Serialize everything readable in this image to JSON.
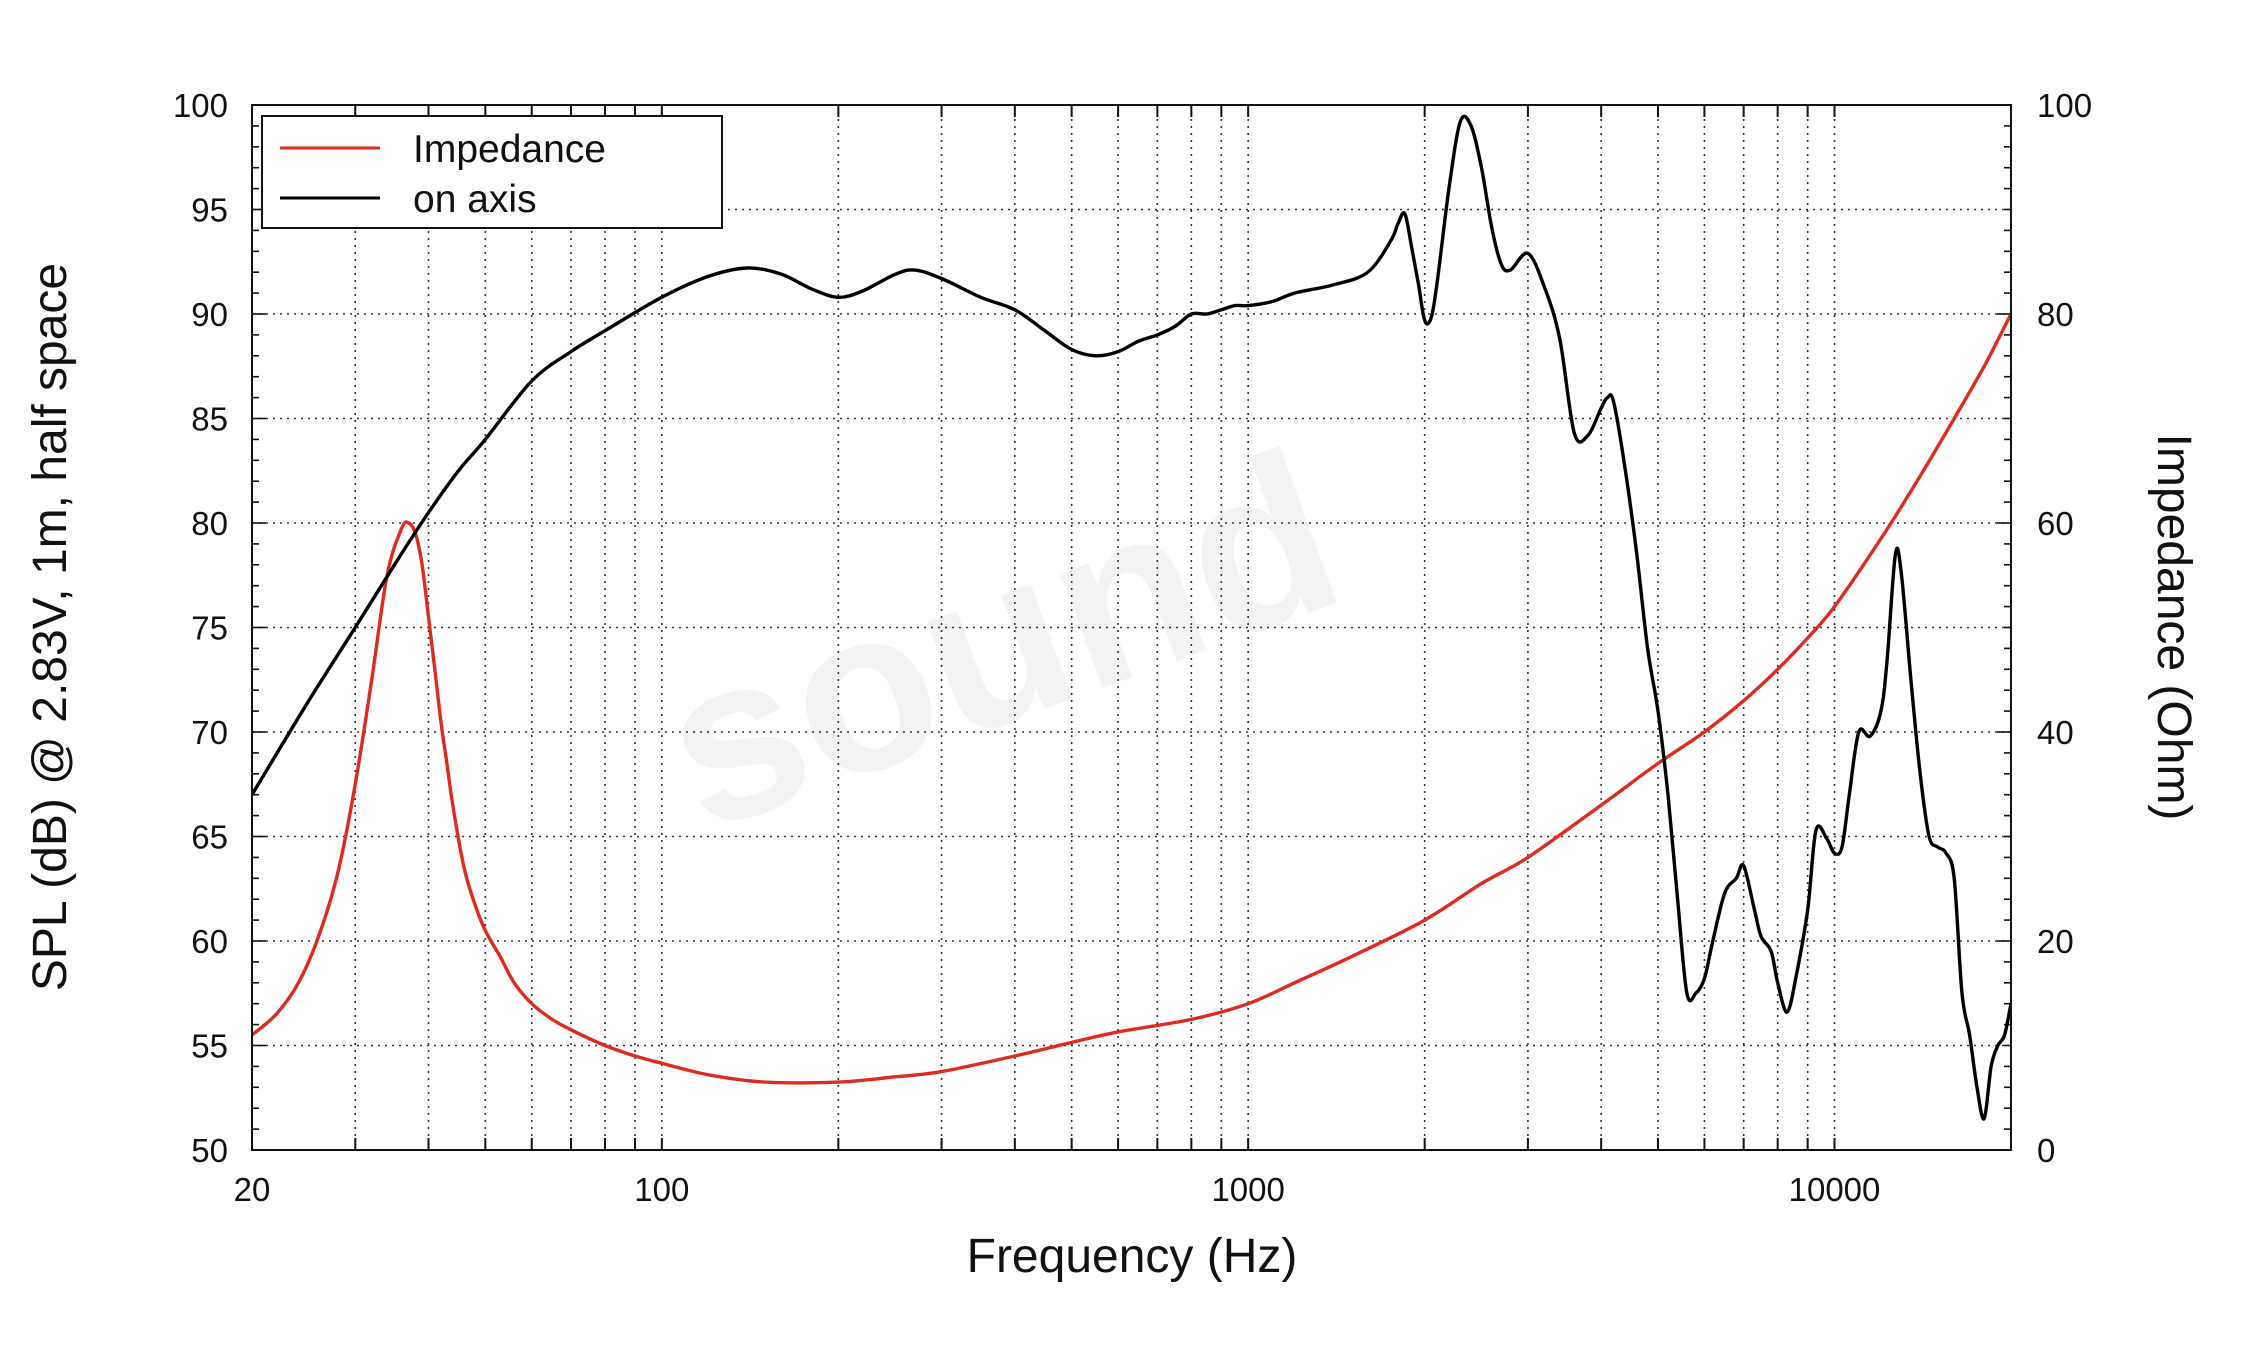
{
  "chart_data": {
    "type": "line",
    "xlabel": "Frequency (Hz)",
    "ylabel": "SPL (dB) @ 2.83V, 1m, half space",
    "y2label": "Impedance (Ohm)",
    "xscale": "log",
    "xlim": [
      20,
      20000
    ],
    "ylim": [
      50,
      100
    ],
    "y2lim": [
      0,
      100
    ],
    "xticks": [
      20,
      100,
      1000,
      10000
    ],
    "xtick_labels": [
      "20",
      "100",
      "1000",
      "10000"
    ],
    "yticks": [
      50,
      55,
      60,
      65,
      70,
      75,
      80,
      85,
      90,
      95,
      100
    ],
    "ytick_labels": [
      "50",
      "55",
      "60",
      "65",
      "70",
      "75",
      "80",
      "85",
      "90",
      "95",
      "100"
    ],
    "y2ticks": [
      0,
      20,
      40,
      60,
      80,
      100
    ],
    "y2tick_labels": [
      "0",
      "20",
      "40",
      "60",
      "80",
      "100"
    ],
    "grid": true,
    "legend": {
      "position": "top-left",
      "entries": [
        {
          "label": "Impedance",
          "color": "#dd2b1f"
        },
        {
          "label": "on axis",
          "color": "#000000"
        }
      ]
    },
    "watermark": "sound",
    "series": [
      {
        "name": "Impedance",
        "axis": "y2",
        "color": "#dd2b1f",
        "x": [
          20,
          22,
          24,
          26,
          28,
          30,
          32,
          34,
          36,
          37,
          38,
          39,
          40,
          41,
          42,
          43,
          44,
          46,
          48,
          50,
          53,
          56,
          60,
          65,
          70,
          80,
          90,
          100,
          120,
          150,
          200,
          250,
          300,
          400,
          500,
          600,
          800,
          1000,
          1200,
          1500,
          2000,
          2500,
          3000,
          4000,
          5000,
          6000,
          7000,
          8000,
          9000,
          10000,
          12000,
          14000,
          16000,
          18000,
          20000
        ],
        "y": [
          11,
          13,
          16,
          20.5,
          26.5,
          35,
          45,
          55,
          59.5,
          60,
          59,
          56,
          51,
          46,
          41,
          37,
          33,
          27,
          23.5,
          21,
          18.5,
          16,
          14,
          12.5,
          11.5,
          10,
          9,
          8.3,
          7.2,
          6.5,
          6.5,
          7,
          7.5,
          9,
          10.3,
          11.3,
          12.5,
          14,
          16,
          18.5,
          22,
          25.5,
          28,
          33,
          37,
          40,
          43,
          46,
          49,
          52,
          58.5,
          64.5,
          70,
          75,
          80
        ]
      },
      {
        "name": "on axis",
        "axis": "y",
        "color": "#000000",
        "x": [
          20,
          25,
          30,
          35,
          40,
          45,
          50,
          60,
          70,
          80,
          100,
          120,
          140,
          160,
          180,
          200,
          220,
          250,
          270,
          300,
          350,
          400,
          450,
          500,
          550,
          600,
          650,
          700,
          750,
          800,
          850,
          900,
          950,
          1000,
          1100,
          1200,
          1400,
          1600,
          1750,
          1800,
          1850,
          1900,
          1950,
          2000,
          2050,
          2100,
          2200,
          2300,
          2400,
          2500,
          2600,
          2700,
          2800,
          3000,
          3200,
          3400,
          3600,
          3800,
          4000,
          4100,
          4200,
          4400,
          4600,
          4800,
          5000,
          5200,
          5400,
          5600,
          5800,
          6000,
          6200,
          6500,
          6800,
          7000,
          7300,
          7500,
          7800,
          8000,
          8300,
          8600,
          9000,
          9300,
          9700,
          10000,
          10300,
          10600,
          11000,
          11500,
          12000,
          12300,
          12700,
          13000,
          13500,
          14000,
          14500,
          15000,
          15500,
          16000,
          16500,
          17000,
          17500,
          18000,
          18500,
          19000,
          19500,
          20000
        ],
        "y": [
          67,
          71.5,
          75,
          78,
          80.5,
          82.5,
          84,
          86.8,
          88.2,
          89.2,
          90.8,
          91.8,
          92.2,
          91.9,
          91.2,
          90.8,
          91.1,
          91.9,
          92.1,
          91.7,
          90.8,
          90.2,
          89.2,
          88.3,
          88,
          88.2,
          88.7,
          89,
          89.4,
          90,
          90,
          90.2,
          90.4,
          90.4,
          90.6,
          91,
          91.4,
          92,
          93.5,
          94.3,
          94.8,
          93.2,
          91.5,
          89.7,
          89.8,
          91.5,
          96,
          99.2,
          99,
          97,
          94.2,
          92.4,
          92.1,
          92.9,
          91.3,
          88.8,
          84.3,
          84.2,
          85.5,
          86,
          85.8,
          82.5,
          78.5,
          74,
          71,
          67,
          62,
          57.5,
          57.5,
          58.2,
          60,
          62.3,
          63,
          63.6,
          61.5,
          60.2,
          59.5,
          58,
          56.6,
          58.3,
          61.5,
          65.3,
          64.9,
          64.2,
          64.5,
          67,
          70,
          69.8,
          71,
          73.5,
          78.5,
          77.6,
          72.5,
          68,
          65,
          64.5,
          64.2,
          63,
          57.5,
          55.5,
          53,
          51.5,
          54,
          55,
          55.5,
          57
        ]
      }
    ]
  }
}
